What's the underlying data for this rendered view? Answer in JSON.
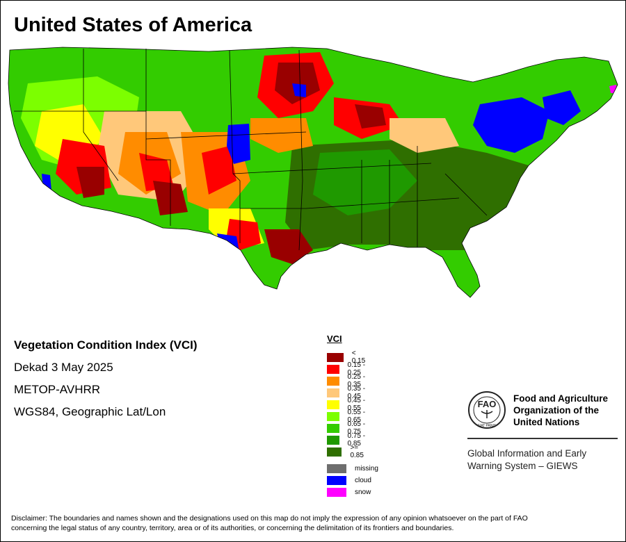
{
  "title": "United States of America",
  "info": {
    "heading": "Vegetation Condition Index (VCI)",
    "period": "Dekad 3 May 2025",
    "sensor": "METOP-AVHRR",
    "projection": "WGS84, Geographic Lat/Lon"
  },
  "legend": {
    "title": "VCI",
    "classes": [
      {
        "label": "< 0.15",
        "color": "#990000"
      },
      {
        "label": "0.15 - 0.25",
        "color": "#ff0000"
      },
      {
        "label": "0.25 - 0.35",
        "color": "#ff8c00"
      },
      {
        "label": "0.35 - 0.45",
        "color": "#ffc87a"
      },
      {
        "label": "0.45 - 0.55",
        "color": "#ffff00"
      },
      {
        "label": "0.55 - 0.65",
        "color": "#7cff00"
      },
      {
        "label": "0.65 - 0.75",
        "color": "#33cc00"
      },
      {
        "label": "0.75 - 0.85",
        "color": "#1f9900"
      },
      {
        "label": ">= 0.85",
        "color": "#2f6f00"
      }
    ],
    "special": [
      {
        "label": "missing",
        "color": "#6e6e6e"
      },
      {
        "label": "cloud",
        "color": "#0000ff"
      },
      {
        "label": "snow",
        "color": "#ff00ff"
      }
    ]
  },
  "logo": {
    "org_line1": "Food and Agriculture",
    "org_line2": "Organization of the",
    "org_line3": "United Nations",
    "emblem_text": "FIAT PANIS",
    "giews_line1": "Global Information and Early",
    "giews_line2": "Warning System – GIEWS"
  },
  "disclaimer_line1": "Disclaimer: The boundaries and names shown and the designations used on this map do not imply the expression of any opinion whatsoever on the part of FAO",
  "disclaimer_line2": "concerning the legal status of any country, territory, area or of its authorities, or concerning the delimitation of its frontiers and boundaries."
}
